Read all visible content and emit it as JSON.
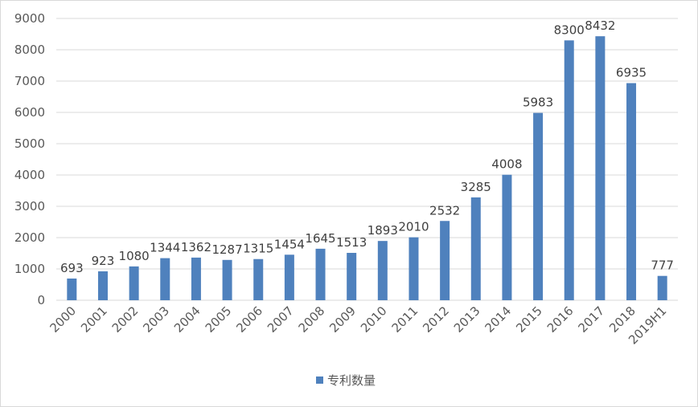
{
  "chart_data": {
    "type": "bar",
    "title": "",
    "xlabel": "",
    "ylabel": "",
    "categories": [
      "2000",
      "2001",
      "2002",
      "2003",
      "2004",
      "2005",
      "2006",
      "2007",
      "2008",
      "2009",
      "2010",
      "2011",
      "2012",
      "2013",
      "2014",
      "2015",
      "2016",
      "2017",
      "2018",
      "2019H1"
    ],
    "series": [
      {
        "name": "专利数量",
        "color": "#4f81bd",
        "values": [
          693,
          923,
          1080,
          1344,
          1362,
          1287,
          1315,
          1454,
          1645,
          1513,
          1893,
          2010,
          2532,
          3285,
          4008,
          5983,
          8300,
          8432,
          6935,
          777
        ]
      }
    ],
    "ylim": [
      0,
      9000
    ],
    "yticks": [
      0,
      1000,
      2000,
      3000,
      4000,
      5000,
      6000,
      7000,
      8000,
      9000
    ],
    "grid": true,
    "data_labels": true,
    "legend": "bottom"
  }
}
